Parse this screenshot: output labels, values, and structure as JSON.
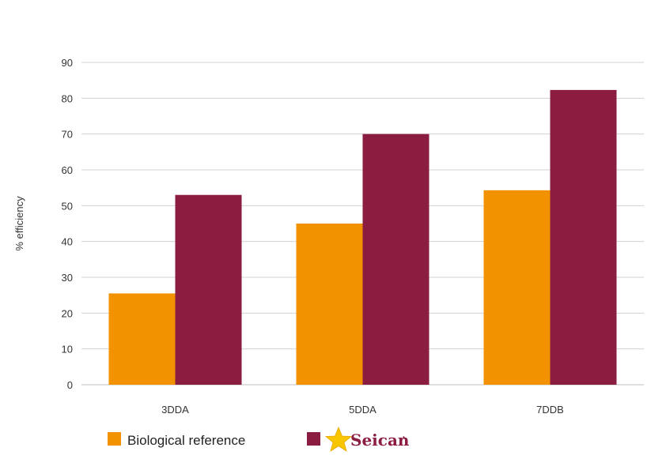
{
  "chart_data": {
    "type": "bar",
    "title": "",
    "xlabel": "",
    "ylabel": "% efficiency",
    "ylim": [
      0,
      90
    ],
    "yticks": [
      0,
      10,
      20,
      30,
      40,
      50,
      60,
      70,
      80,
      90
    ],
    "grid": true,
    "legend_position": "bottom-left",
    "categories": [
      "3DDA",
      "5DDA",
      "7DDB"
    ],
    "series": [
      {
        "name": "Biological reference",
        "color": "#F39200",
        "values": [
          25.5,
          45,
          54.3
        ]
      },
      {
        "name": "Seican",
        "color": "#8B1D41",
        "values": [
          53,
          70,
          82.3
        ]
      }
    ]
  },
  "legend": {
    "items": [
      {
        "label": "Biological reference",
        "color": "#F39200"
      },
      {
        "label": "Seican",
        "color": "#8B1D41",
        "icon": "star-logo-icon"
      }
    ]
  },
  "colors": {
    "grid": "#D0D0D0",
    "axis": "#BFBFBF",
    "logo_star": "#F7C600"
  }
}
